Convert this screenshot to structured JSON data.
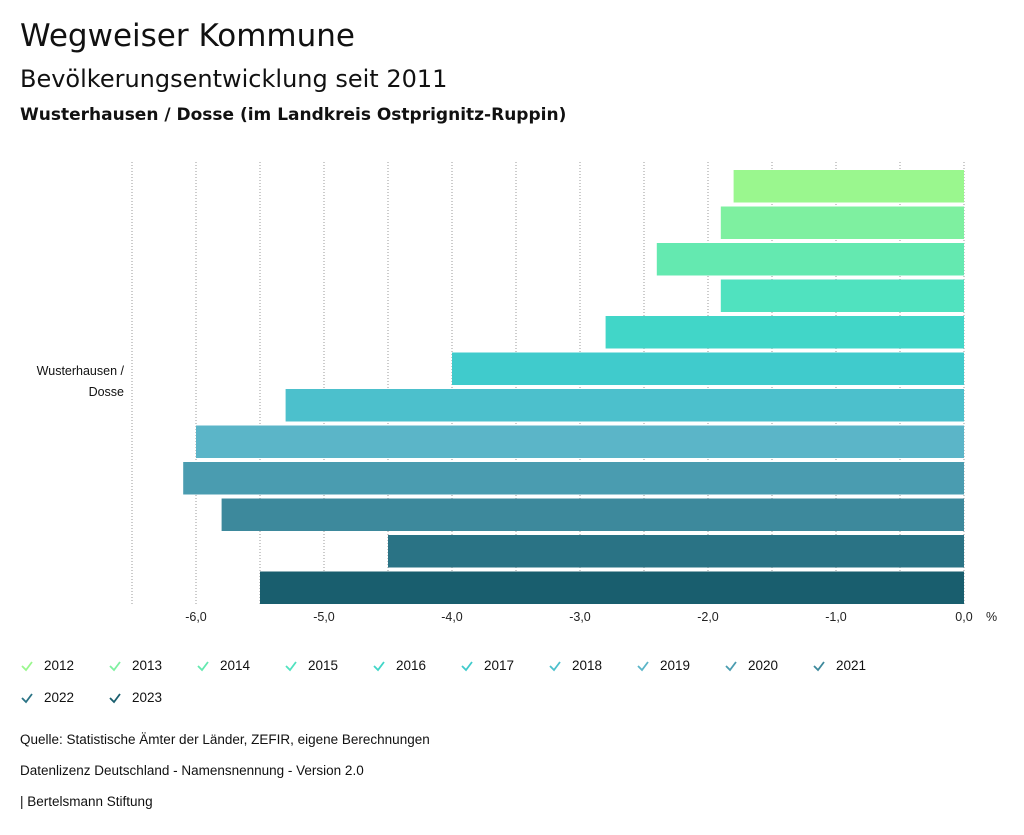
{
  "header": {
    "title": "Wegweiser Kommune",
    "subtitle": "Bevölkerungsentwicklung seit 2011",
    "region": "Wusterhausen / Dosse (im Landkreis Ostprignitz-Ruppin)"
  },
  "chart_data": {
    "type": "bar",
    "orientation": "horizontal",
    "category": [
      "Wusterhausen /",
      "Dosse"
    ],
    "unit": "%",
    "xlim": [
      -6.5,
      0
    ],
    "ticks": [
      -6,
      -5,
      -4,
      -3,
      -2,
      -1,
      0
    ],
    "tick_labels": [
      "-6,0",
      "-5,0",
      "-4,0",
      "-3,0",
      "-2,0",
      "-1,0",
      "0,0"
    ],
    "series": [
      {
        "name": "2012",
        "value": -1.8,
        "color": "#9af78e"
      },
      {
        "name": "2013",
        "value": -1.9,
        "color": "#7ef0a0"
      },
      {
        "name": "2014",
        "value": -2.4,
        "color": "#64e9b0"
      },
      {
        "name": "2015",
        "value": -1.9,
        "color": "#50e2bf"
      },
      {
        "name": "2016",
        "value": -2.8,
        "color": "#41d6c8"
      },
      {
        "name": "2017",
        "value": -4.0,
        "color": "#40cbcc"
      },
      {
        "name": "2018",
        "value": -5.3,
        "color": "#4cc0cc"
      },
      {
        "name": "2019",
        "value": -6.0,
        "color": "#5bb5c8"
      },
      {
        "name": "2020",
        "value": -6.1,
        "color": "#4a9cb0"
      },
      {
        "name": "2021",
        "value": -5.8,
        "color": "#3d899c"
      },
      {
        "name": "2022",
        "value": -4.5,
        "color": "#2a7385"
      },
      {
        "name": "2023",
        "value": -5.5,
        "color": "#195e6e"
      }
    ]
  },
  "footer": {
    "source": "Quelle: Statistische Ämter der Länder, ZEFIR, eigene Berechnungen",
    "license": "Datenlizenz Deutschland - Namensnennung - Version 2.0",
    "publisher": "| Bertelsmann Stiftung"
  }
}
